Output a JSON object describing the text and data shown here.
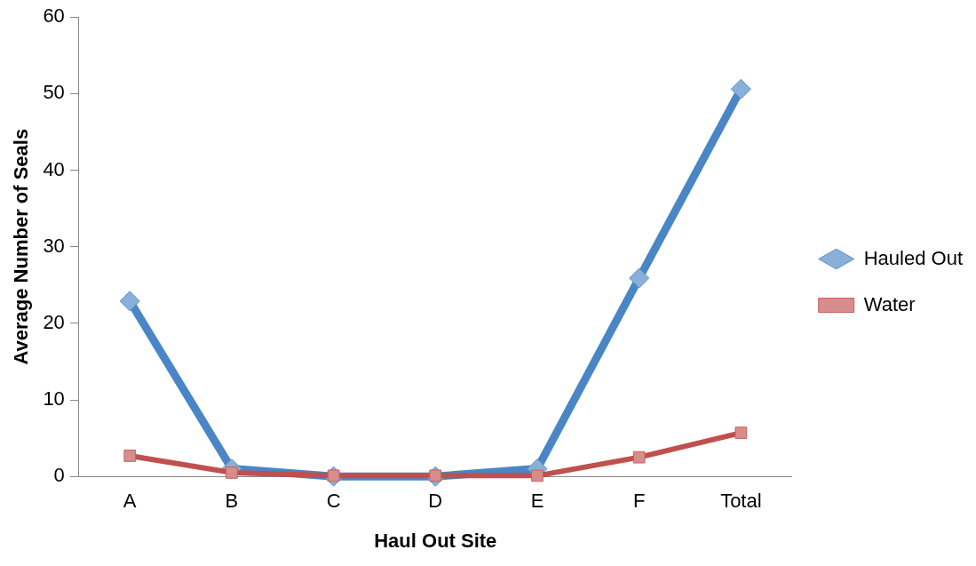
{
  "chart_data": {
    "type": "line",
    "xlabel": "Haul Out Site",
    "ylabel": "Average Number of Seals",
    "categories": [
      "A",
      "B",
      "C",
      "D",
      "E",
      "F",
      "Total"
    ],
    "series": [
      {
        "name": "Hauled Out",
        "color": "#4a86c5",
        "marker": "diamond",
        "values": [
          22.9,
          1,
          0,
          0,
          1,
          25.9,
          50.6
        ]
      },
      {
        "name": "Water",
        "color": "#c0504d",
        "marker": "square",
        "values": [
          2.7,
          0.5,
          0.1,
          0.1,
          0.1,
          2.5,
          5.7
        ]
      }
    ],
    "ylim": [
      0,
      60
    ],
    "yticks": [
      0,
      10,
      20,
      30,
      40,
      50,
      60
    ],
    "grid": false,
    "legend": "right"
  }
}
